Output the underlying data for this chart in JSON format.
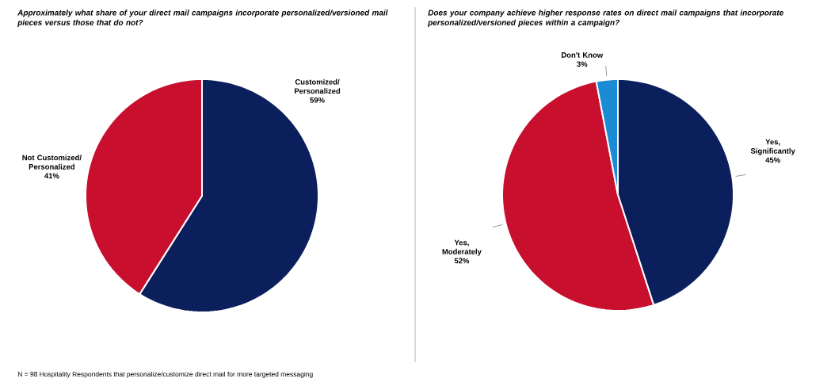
{
  "chart_data": [
    {
      "type": "pie",
      "title": "Approximately what share of your direct mail campaigns incorporate personalized/versioned mail pieces versus those that do not?",
      "categories": [
        "Customized/ Personalized",
        "Not Customized/ Personalized"
      ],
      "values": [
        59,
        41
      ],
      "colors": [
        "#0b1f5c",
        "#c8102e"
      ],
      "value_labels": [
        "59%",
        "41%"
      ],
      "annotations": [
        "N = 98 Hospitality Respondents that personalize/customize direct mail for more targeted messaging"
      ]
    },
    {
      "type": "pie",
      "title": "Does your company achieve higher response rates on direct mail campaigns that incorporate personalized/versioned pieces within a campaign?",
      "categories": [
        "Yes, Significantly",
        "Yes, Moderately",
        "Don't Know"
      ],
      "values": [
        45,
        52,
        3
      ],
      "colors": [
        "#0b1f5c",
        "#c8102e",
        "#1b8bd4"
      ],
      "value_labels": [
        "45%",
        "52%",
        "3%"
      ]
    }
  ]
}
